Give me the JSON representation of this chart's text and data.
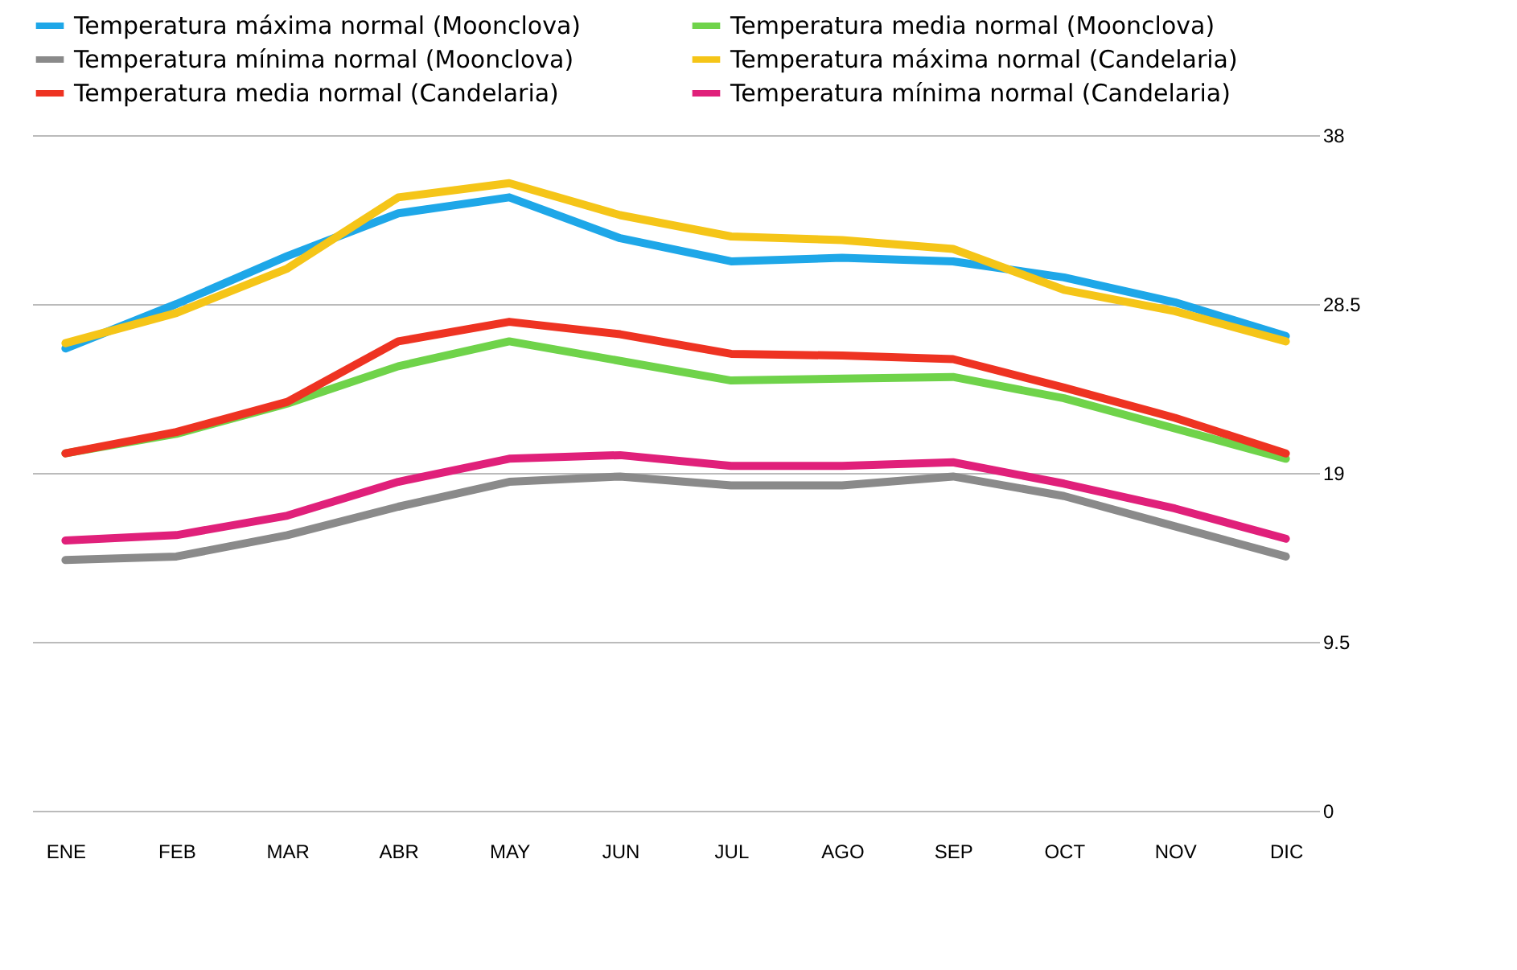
{
  "chart_data": {
    "type": "line",
    "categories": [
      "ENE",
      "FEB",
      "MAR",
      "ABR",
      "MAY",
      "JUN",
      "JUL",
      "AGO",
      "SEP",
      "OCT",
      "NOV",
      "DIC"
    ],
    "series": [
      {
        "name": "Temperatura máxima normal (Moonclova)",
        "color": "#1ea7e8",
        "values": [
          26,
          28.5,
          31.2,
          33.6,
          34.5,
          32.2,
          30.9,
          31.1,
          30.9,
          30,
          28.6,
          26.7
        ]
      },
      {
        "name": "Temperatura media normal (Moonclova)",
        "color": "#6fd34a",
        "values": [
          20.1,
          21.2,
          22.9,
          25,
          26.4,
          25.3,
          24.2,
          24.3,
          24.4,
          23.2,
          21.5,
          19.8
        ]
      },
      {
        "name": "Temperatura mínima normal  (Moonclova)",
        "color": "#8a8a8a",
        "values": [
          14.1,
          14.3,
          15.5,
          17.1,
          18.5,
          18.8,
          18.3,
          18.3,
          18.8,
          17.7,
          16,
          14.3
        ]
      },
      {
        "name": "Temperatura máxima normal (Candelaria)",
        "color": "#f5c518",
        "values": [
          26.3,
          28,
          30.5,
          34.5,
          35.3,
          33.5,
          32.3,
          32.1,
          31.6,
          29.3,
          28.1,
          26.4
        ]
      },
      {
        "name": "Temperatura media normal (Candelaria)",
        "color": "#ee3322",
        "values": [
          20.1,
          21.3,
          23,
          26.4,
          27.5,
          26.8,
          25.7,
          25.6,
          25.4,
          23.8,
          22.1,
          20.1
        ]
      },
      {
        "name": "Temperatura mínima  normal (Candelaria)",
        "color": "#e0207a",
        "values": [
          15.2,
          15.5,
          16.6,
          18.5,
          19.8,
          20,
          19.4,
          19.4,
          19.6,
          18.4,
          17,
          15.3
        ]
      }
    ],
    "ylim": [
      0,
      38
    ],
    "yticks": [
      0,
      9.5,
      19,
      28.5,
      38
    ],
    "grid": "y",
    "legend": "top",
    "marker": "none",
    "line_style": "solid"
  }
}
